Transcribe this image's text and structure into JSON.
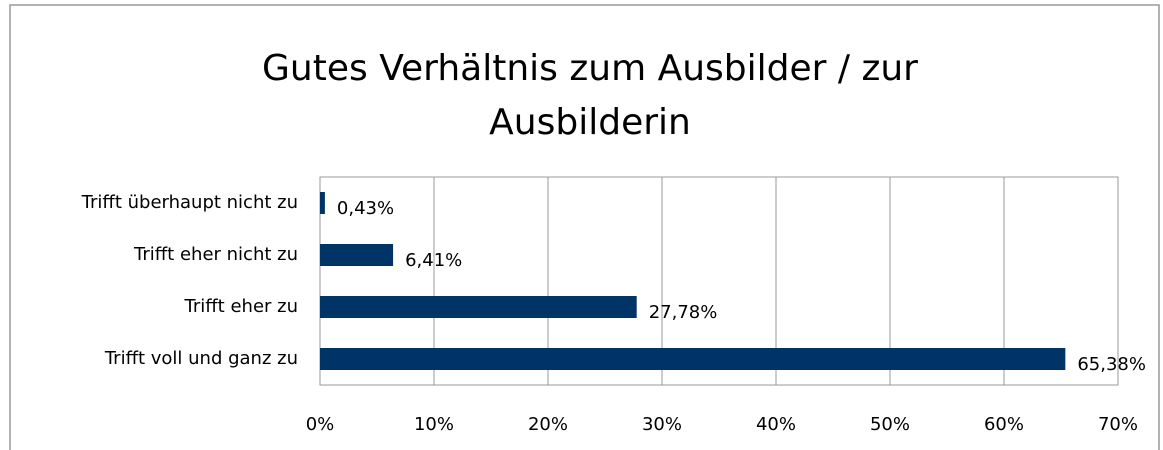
{
  "chart_data": {
    "type": "hbar",
    "title": [
      "Gutes Verhältnis zum Ausbilder / zur",
      "Ausbilderin"
    ],
    "categories": [
      "Trifft überhaupt nicht zu",
      "Trifft eher nicht zu",
      "Trifft eher zu",
      "Trifft voll und ganz zu"
    ],
    "values": [
      0.43,
      6.41,
      27.78,
      65.38
    ],
    "value_labels": [
      "0,43%",
      "6,41%",
      "27,78%",
      "65,38%"
    ],
    "color": "#003366",
    "xlim": [
      0,
      70
    ],
    "xticks": [
      {
        "value": 0,
        "label": "0%"
      },
      {
        "value": 10,
        "label": "10%"
      },
      {
        "value": 20,
        "label": "20%"
      },
      {
        "value": 30,
        "label": "30%"
      },
      {
        "value": 40,
        "label": "40%"
      },
      {
        "value": 50,
        "label": "50%"
      },
      {
        "value": 60,
        "label": "60%"
      },
      {
        "value": 70,
        "label": "70%"
      }
    ],
    "grid": true
  }
}
